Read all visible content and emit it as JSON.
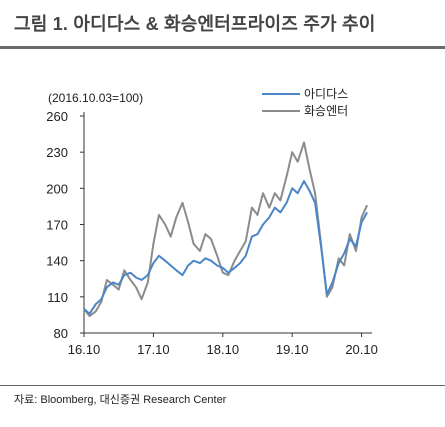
{
  "figure": {
    "title": "그림 1. 아디다스 & 화승엔터프라이즈 주가 추이",
    "source": "자료: Bloomberg, 대신증권 Research Center"
  },
  "chart_data": {
    "type": "line",
    "note": "(2016.10.03=100)",
    "x_ticks": [
      "16.10",
      "17.10",
      "18.10",
      "19.10",
      "20.10"
    ],
    "y_ticks": [
      80,
      110,
      140,
      170,
      200,
      230,
      260
    ],
    "ylim": [
      80,
      260
    ],
    "xlim": [
      2016.75,
      2020.9
    ],
    "grid": false,
    "legend_position": "top-right",
    "series": [
      {
        "name": "아디다스",
        "color": "#4a86c8",
        "x": [
          2016.75,
          2016.83,
          2016.92,
          2017.0,
          2017.08,
          2017.17,
          2017.25,
          2017.33,
          2017.42,
          2017.5,
          2017.58,
          2017.67,
          2017.75,
          2017.83,
          2017.92,
          2018.0,
          2018.08,
          2018.17,
          2018.25,
          2018.33,
          2018.42,
          2018.5,
          2018.58,
          2018.67,
          2018.75,
          2018.83,
          2018.92,
          2019.0,
          2019.08,
          2019.17,
          2019.25,
          2019.33,
          2019.42,
          2019.5,
          2019.58,
          2019.67,
          2019.75,
          2019.83,
          2019.92,
          2020.0,
          2020.08,
          2020.17,
          2020.25,
          2020.33,
          2020.42,
          2020.5,
          2020.58,
          2020.67,
          2020.75,
          2020.83
        ],
        "values": [
          100,
          96,
          104,
          108,
          118,
          122,
          120,
          128,
          130,
          126,
          124,
          128,
          138,
          144,
          140,
          136,
          132,
          128,
          136,
          140,
          138,
          142,
          140,
          136,
          134,
          130,
          134,
          138,
          144,
          160,
          162,
          170,
          176,
          184,
          180,
          188,
          200,
          196,
          206,
          198,
          188,
          150,
          112,
          122,
          138,
          146,
          158,
          152,
          172,
          180
        ]
      },
      {
        "name": "화승엔터",
        "color": "#8c8c8c",
        "x": [
          2016.75,
          2016.83,
          2016.92,
          2017.0,
          2017.08,
          2017.17,
          2017.25,
          2017.33,
          2017.42,
          2017.5,
          2017.58,
          2017.67,
          2017.75,
          2017.83,
          2017.92,
          2018.0,
          2018.08,
          2018.17,
          2018.25,
          2018.33,
          2018.42,
          2018.5,
          2018.58,
          2018.67,
          2018.75,
          2018.83,
          2018.92,
          2019.0,
          2019.08,
          2019.17,
          2019.25,
          2019.33,
          2019.42,
          2019.5,
          2019.58,
          2019.67,
          2019.75,
          2019.83,
          2019.92,
          2020.0,
          2020.08,
          2020.17,
          2020.25,
          2020.33,
          2020.42,
          2020.5,
          2020.58,
          2020.67,
          2020.75,
          2020.83
        ],
        "values": [
          100,
          94,
          98,
          106,
          124,
          120,
          116,
          132,
          124,
          118,
          108,
          122,
          154,
          178,
          170,
          160,
          176,
          188,
          172,
          154,
          148,
          162,
          158,
          144,
          130,
          128,
          140,
          148,
          156,
          184,
          178,
          196,
          184,
          196,
          190,
          210,
          230,
          222,
          238,
          216,
          196,
          152,
          110,
          118,
          142,
          136,
          162,
          148,
          176,
          186
        ]
      }
    ]
  }
}
